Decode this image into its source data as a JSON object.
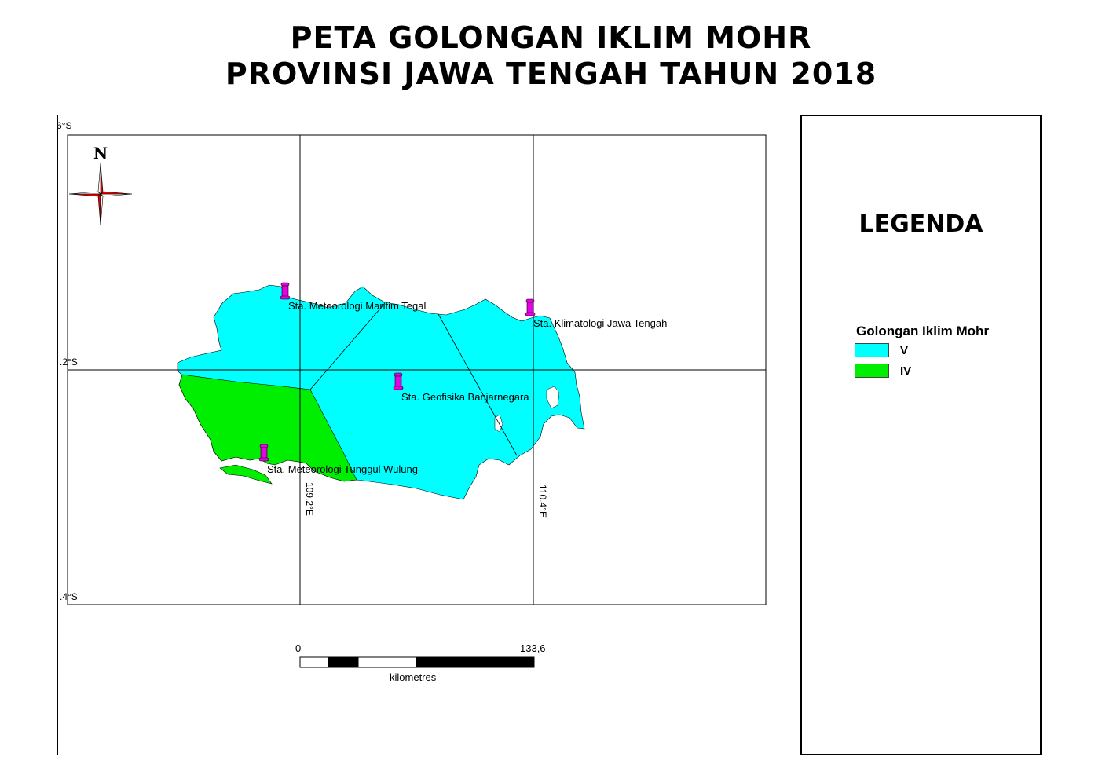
{
  "title": {
    "line1": "PETA GOLONGAN IKLIM MOHR",
    "line2": "PROVINSI JAWA TENGAH TAHUN 2018"
  },
  "north_arrow": {
    "label": "N"
  },
  "graticule": {
    "lat_labels": [
      "6°S",
      ".2°S",
      ".4°S"
    ],
    "lon_labels": [
      "109.2°E",
      "110.4°E"
    ]
  },
  "stations": [
    {
      "name": "Sta. Meteorologi Maritim Tegal"
    },
    {
      "name": "Sta. Klimatologi Jawa Tengah"
    },
    {
      "name": "Sta. Geofisika Banjarnegara"
    },
    {
      "name": "Sta. Meteorologi Tunggul Wulung"
    }
  ],
  "scale_bar": {
    "start": "0",
    "end": "133,6",
    "unit": "kilometres"
  },
  "legend": {
    "title": "LEGENDA",
    "heading": "Golongan Iklim Mohr",
    "items": [
      {
        "label": "V",
        "color": "#00FFFF"
      },
      {
        "label": "IV",
        "color": "#00EE00"
      }
    ]
  },
  "colors": {
    "zone_v": "#00FFFF",
    "zone_iv": "#00EE00",
    "marker": "#E600E6",
    "compass_red": "#E60000"
  }
}
